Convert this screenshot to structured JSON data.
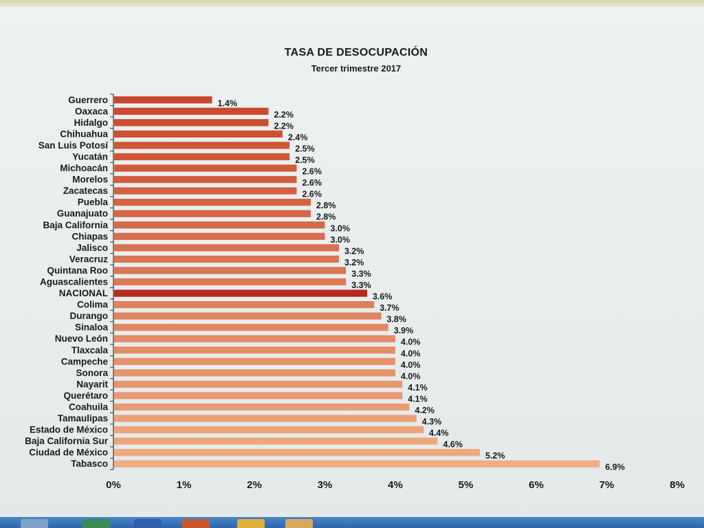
{
  "chart_data": {
    "type": "bar",
    "orientation": "horizontal",
    "title": "TASA DE DESOCUPACIÓN",
    "subtitle": "Tercer trimestre 2017",
    "categories": [
      "Guerrero",
      "Oaxaca",
      "Hidalgo",
      "Chihuahua",
      "San Luis Potosí",
      "Yucatán",
      "Michoacán",
      "Morelos",
      "Zacatecas",
      "Puebla",
      "Guanajuato",
      "Baja California",
      "Chiapas",
      "Jalisco",
      "Veracruz",
      "Quintana Roo",
      "Aguascalientes",
      "NACIONAL",
      "Colima",
      "Durango",
      "Sinaloa",
      "Nuevo León",
      "Tlaxcala",
      "Campeche",
      "Sonora",
      "Nayarit",
      "Querétaro",
      "Coahuila",
      "Tamaulipas",
      "Estado de México",
      "Baja California Sur",
      "Ciudad de México",
      "Tabasco"
    ],
    "values": [
      1.4,
      2.2,
      2.2,
      2.4,
      2.5,
      2.5,
      2.6,
      2.6,
      2.6,
      2.8,
      2.8,
      3.0,
      3.0,
      3.2,
      3.2,
      3.3,
      3.3,
      3.6,
      3.7,
      3.8,
      3.9,
      4.0,
      4.0,
      4.0,
      4.0,
      4.1,
      4.1,
      4.2,
      4.3,
      4.4,
      4.6,
      5.2,
      6.9
    ],
    "data_labels": [
      "1.4%",
      "2.2%",
      "2.2%",
      "2.4%",
      "2.5%",
      "2.5%",
      "2.6%",
      "2.6%",
      "2.6%",
      "2.8%",
      "2.8%",
      "3.0%",
      "3.0%",
      "3.2%",
      "3.2%",
      "3.3%",
      "3.3%",
      "3.6%",
      "3.7%",
      "3.8%",
      "3.9%",
      "4.0%",
      "4.0%",
      "4.0%",
      "4.0%",
      "4.1%",
      "4.1%",
      "4.2%",
      "4.3%",
      "4.4%",
      "4.6%",
      "5.2%",
      "6.9%"
    ],
    "highlight_category": "NACIONAL",
    "xlim": [
      0,
      8
    ],
    "x_ticks": [
      "0%",
      "1%",
      "2%",
      "3%",
      "4%",
      "5%",
      "6%",
      "7%",
      "8%"
    ],
    "grid": false,
    "legend": "none",
    "colors": {
      "bar_dark": "#c9472a",
      "bar_light": "#f0ad82",
      "highlight": "#b8281e",
      "text": "#1a1a1a"
    }
  }
}
